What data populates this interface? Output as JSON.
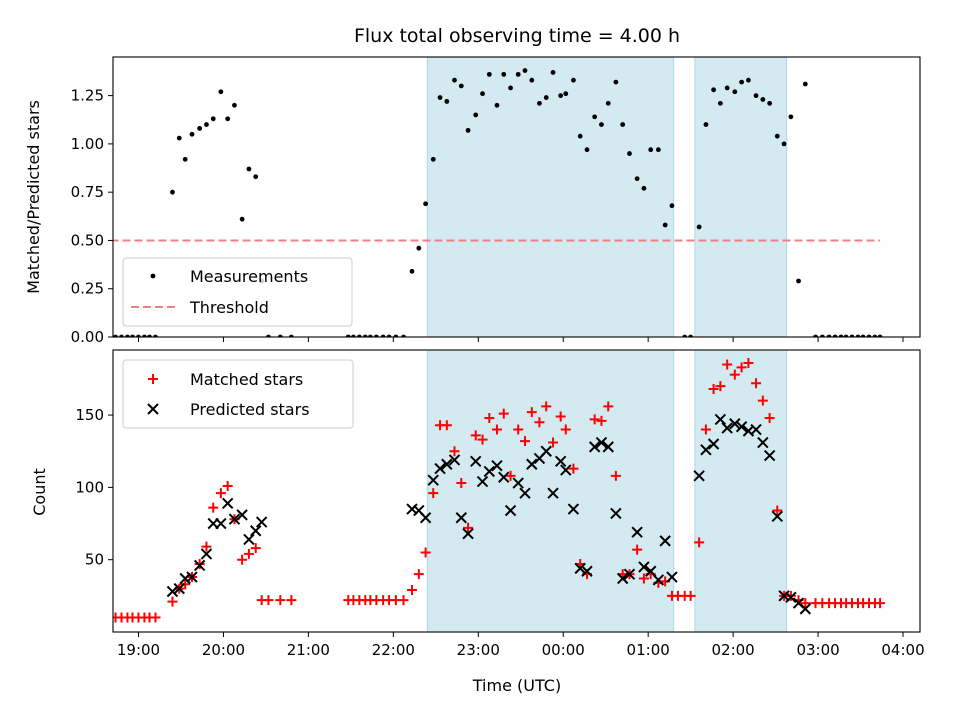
{
  "chart_data": {
    "title": "Flux total observing time = 4.00 h",
    "xlabel": "Time (UTC)",
    "x_unit": "hours since 00:00 UTC (negative = previous day)",
    "xlim": [
      -5.3,
      4.2
    ],
    "x_ticks": [
      -5,
      -4,
      -3,
      -2,
      -1,
      0,
      1,
      2,
      3,
      4
    ],
    "x_tick_labels": [
      "19:00",
      "20:00",
      "21:00",
      "22:00",
      "23:00",
      "00:00",
      "01:00",
      "02:00",
      "03:00",
      "04:00"
    ],
    "shaded_intervals": [
      [
        -1.6,
        1.3
      ],
      [
        1.55,
        2.63
      ]
    ],
    "shade_color": "#d3eaf1",
    "top": {
      "type": "scatter",
      "ylabel": "Matched/Predicted stars",
      "ylim": [
        0,
        1.45
      ],
      "y_ticks": [
        0,
        0.25,
        0.5,
        0.75,
        1.0,
        1.25
      ],
      "y_tick_labels": [
        "0.00",
        "0.25",
        "0.50",
        "0.75",
        "1.00",
        "1.25"
      ],
      "legend": [
        "Measurements",
        "Threshold"
      ],
      "threshold": {
        "name": "Threshold",
        "y": 0.5,
        "x_range": [
          -5.33,
          3.73
        ],
        "color": "#f08080"
      },
      "series": {
        "name": "Measurements",
        "color": "#000000",
        "points": [
          [
            -5.33,
            0
          ],
          [
            -5.27,
            0
          ],
          [
            -5.2,
            0
          ],
          [
            -5.13,
            0
          ],
          [
            -5.07,
            0
          ],
          [
            -5.0,
            0
          ],
          [
            -4.93,
            0
          ],
          [
            -4.87,
            0
          ],
          [
            -4.8,
            0
          ],
          [
            -4.6,
            0.75
          ],
          [
            -4.52,
            1.03
          ],
          [
            -4.45,
            0.92
          ],
          [
            -4.37,
            1.05
          ],
          [
            -4.28,
            1.08
          ],
          [
            -4.2,
            1.1
          ],
          [
            -4.12,
            1.13
          ],
          [
            -4.03,
            1.27
          ],
          [
            -3.95,
            1.13
          ],
          [
            -3.87,
            1.2
          ],
          [
            -3.78,
            0.61
          ],
          [
            -3.7,
            0.87
          ],
          [
            -3.62,
            0.83
          ],
          [
            -3.55,
            0.29
          ],
          [
            -3.47,
            0
          ],
          [
            -3.33,
            0
          ],
          [
            -3.2,
            0
          ],
          [
            -2.53,
            0
          ],
          [
            -2.47,
            0
          ],
          [
            -2.4,
            0
          ],
          [
            -2.33,
            0
          ],
          [
            -2.27,
            0
          ],
          [
            -2.2,
            0
          ],
          [
            -2.12,
            0
          ],
          [
            -2.05,
            0
          ],
          [
            -1.97,
            0
          ],
          [
            -1.88,
            0
          ],
          [
            -1.78,
            0.34
          ],
          [
            -1.7,
            0.46
          ],
          [
            -1.62,
            0.69
          ],
          [
            -1.53,
            0.92
          ],
          [
            -1.45,
            1.24
          ],
          [
            -1.37,
            1.22
          ],
          [
            -1.28,
            1.33
          ],
          [
            -1.2,
            1.3
          ],
          [
            -1.12,
            1.07
          ],
          [
            -1.03,
            1.15
          ],
          [
            -0.95,
            1.26
          ],
          [
            -0.87,
            1.36
          ],
          [
            -0.78,
            1.2
          ],
          [
            -0.7,
            1.36
          ],
          [
            -0.62,
            1.29
          ],
          [
            -0.53,
            1.36
          ],
          [
            -0.45,
            1.38
          ],
          [
            -0.37,
            1.33
          ],
          [
            -0.28,
            1.21
          ],
          [
            -0.2,
            1.24
          ],
          [
            -0.12,
            1.37
          ],
          [
            -0.03,
            1.25
          ],
          [
            0.03,
            1.26
          ],
          [
            0.12,
            1.33
          ],
          [
            0.2,
            1.04
          ],
          [
            0.28,
            0.97
          ],
          [
            0.37,
            1.14
          ],
          [
            0.45,
            1.1
          ],
          [
            0.53,
            1.21
          ],
          [
            0.62,
            1.32
          ],
          [
            0.7,
            1.1
          ],
          [
            0.78,
            0.95
          ],
          [
            0.87,
            0.82
          ],
          [
            0.95,
            0.77
          ],
          [
            1.03,
            0.97
          ],
          [
            1.12,
            0.97
          ],
          [
            1.2,
            0.58
          ],
          [
            1.28,
            0.68
          ],
          [
            1.43,
            0
          ],
          [
            1.5,
            0
          ],
          [
            1.6,
            0.57
          ],
          [
            1.68,
            1.1
          ],
          [
            1.77,
            1.28
          ],
          [
            1.85,
            1.21
          ],
          [
            1.93,
            1.29
          ],
          [
            2.02,
            1.27
          ],
          [
            2.1,
            1.32
          ],
          [
            2.18,
            1.33
          ],
          [
            2.27,
            1.25
          ],
          [
            2.35,
            1.23
          ],
          [
            2.43,
            1.21
          ],
          [
            2.52,
            1.04
          ],
          [
            2.6,
            1.0
          ],
          [
            2.68,
            1.14
          ],
          [
            2.77,
            0.29
          ],
          [
            2.85,
            1.31
          ],
          [
            2.97,
            0
          ],
          [
            3.05,
            0
          ],
          [
            3.13,
            0
          ],
          [
            3.2,
            0
          ],
          [
            3.27,
            0
          ],
          [
            3.33,
            0
          ],
          [
            3.4,
            0
          ],
          [
            3.47,
            0
          ],
          [
            3.53,
            0
          ],
          [
            3.6,
            0
          ],
          [
            3.67,
            0
          ],
          [
            3.73,
            0
          ]
        ]
      }
    },
    "bottom": {
      "type": "scatter",
      "ylabel": "Count",
      "ylim": [
        0,
        195
      ],
      "y_ticks": [
        50,
        100,
        150
      ],
      "y_tick_labels": [
        "50",
        "100",
        "150"
      ],
      "legend": [
        "Matched stars",
        "Predicted stars"
      ],
      "series": [
        {
          "name": "Matched stars",
          "marker": "plus",
          "color": "#ff0000",
          "points": [
            [
              -5.33,
              10
            ],
            [
              -5.27,
              10
            ],
            [
              -5.2,
              10
            ],
            [
              -5.13,
              10
            ],
            [
              -5.07,
              10
            ],
            [
              -5.0,
              10
            ],
            [
              -4.93,
              10
            ],
            [
              -4.87,
              10
            ],
            [
              -4.8,
              10
            ],
            [
              -4.6,
              21
            ],
            [
              -4.52,
              30
            ],
            [
              -4.45,
              33
            ],
            [
              -4.37,
              38
            ],
            [
              -4.28,
              47
            ],
            [
              -4.2,
              59
            ],
            [
              -4.12,
              86
            ],
            [
              -4.03,
              96
            ],
            [
              -3.95,
              101
            ],
            [
              -3.87,
              78
            ],
            [
              -3.78,
              50
            ],
            [
              -3.7,
              54
            ],
            [
              -3.62,
              58
            ],
            [
              -3.55,
              22
            ],
            [
              -3.47,
              22
            ],
            [
              -3.33,
              22
            ],
            [
              -3.2,
              22
            ],
            [
              -2.53,
              22
            ],
            [
              -2.47,
              22
            ],
            [
              -2.4,
              22
            ],
            [
              -2.33,
              22
            ],
            [
              -2.27,
              22
            ],
            [
              -2.2,
              22
            ],
            [
              -2.12,
              22
            ],
            [
              -2.05,
              22
            ],
            [
              -1.97,
              22
            ],
            [
              -1.88,
              22
            ],
            [
              -1.78,
              29
            ],
            [
              -1.7,
              40
            ],
            [
              -1.62,
              55
            ],
            [
              -1.53,
              96
            ],
            [
              -1.45,
              143
            ],
            [
              -1.37,
              143
            ],
            [
              -1.28,
              125
            ],
            [
              -1.2,
              103
            ],
            [
              -1.12,
              72
            ],
            [
              -1.03,
              136
            ],
            [
              -0.95,
              133
            ],
            [
              -0.87,
              148
            ],
            [
              -0.78,
              140
            ],
            [
              -0.7,
              151
            ],
            [
              -0.62,
              108
            ],
            [
              -0.53,
              140
            ],
            [
              -0.45,
              132
            ],
            [
              -0.37,
              152
            ],
            [
              -0.28,
              145
            ],
            [
              -0.2,
              156
            ],
            [
              -0.12,
              131
            ],
            [
              -0.03,
              149
            ],
            [
              0.03,
              140
            ],
            [
              0.12,
              113
            ],
            [
              0.2,
              47
            ],
            [
              0.28,
              40
            ],
            [
              0.37,
              147
            ],
            [
              0.45,
              146
            ],
            [
              0.53,
              156
            ],
            [
              0.62,
              108
            ],
            [
              0.7,
              40
            ],
            [
              0.78,
              40
            ],
            [
              0.87,
              57
            ],
            [
              0.95,
              37
            ],
            [
              1.03,
              40
            ],
            [
              1.12,
              34
            ],
            [
              1.2,
              35
            ],
            [
              1.28,
              25
            ],
            [
              1.35,
              25
            ],
            [
              1.43,
              25
            ],
            [
              1.5,
              25
            ],
            [
              1.6,
              62
            ],
            [
              1.68,
              140
            ],
            [
              1.77,
              168
            ],
            [
              1.85,
              170
            ],
            [
              1.93,
              185
            ],
            [
              2.02,
              178
            ],
            [
              2.1,
              183
            ],
            [
              2.18,
              186
            ],
            [
              2.27,
              172
            ],
            [
              2.35,
              160
            ],
            [
              2.43,
              148
            ],
            [
              2.52,
              84
            ],
            [
              2.6,
              25
            ],
            [
              2.68,
              25
            ],
            [
              2.77,
              22
            ],
            [
              2.85,
              20
            ],
            [
              2.97,
              20
            ],
            [
              3.05,
              20
            ],
            [
              3.13,
              20
            ],
            [
              3.2,
              20
            ],
            [
              3.27,
              20
            ],
            [
              3.33,
              20
            ],
            [
              3.4,
              20
            ],
            [
              3.47,
              20
            ],
            [
              3.53,
              20
            ],
            [
              3.6,
              20
            ],
            [
              3.67,
              20
            ],
            [
              3.73,
              20
            ]
          ]
        },
        {
          "name": "Predicted stars",
          "marker": "x",
          "color": "#000000",
          "points": [
            [
              -4.6,
              28
            ],
            [
              -4.52,
              30
            ],
            [
              -4.45,
              37
            ],
            [
              -4.37,
              38
            ],
            [
              -4.28,
              46
            ],
            [
              -4.2,
              54
            ],
            [
              -4.12,
              75
            ],
            [
              -4.03,
              75
            ],
            [
              -3.95,
              89
            ],
            [
              -3.87,
              78
            ],
            [
              -3.78,
              81
            ],
            [
              -3.7,
              64
            ],
            [
              -3.62,
              70
            ],
            [
              -3.55,
              76
            ],
            [
              -1.78,
              85
            ],
            [
              -1.7,
              84
            ],
            [
              -1.62,
              79
            ],
            [
              -1.53,
              105
            ],
            [
              -1.45,
              113
            ],
            [
              -1.37,
              116
            ],
            [
              -1.28,
              119
            ],
            [
              -1.2,
              79
            ],
            [
              -1.12,
              68
            ],
            [
              -1.03,
              118
            ],
            [
              -0.95,
              104
            ],
            [
              -0.87,
              111
            ],
            [
              -0.78,
              115
            ],
            [
              -0.7,
              107
            ],
            [
              -0.62,
              84
            ],
            [
              -0.53,
              103
            ],
            [
              -0.45,
              96
            ],
            [
              -0.37,
              116
            ],
            [
              -0.28,
              120
            ],
            [
              -0.2,
              125
            ],
            [
              -0.12,
              96
            ],
            [
              -0.03,
              118
            ],
            [
              0.03,
              112
            ],
            [
              0.12,
              85
            ],
            [
              0.2,
              44
            ],
            [
              0.28,
              42
            ],
            [
              0.37,
              128
            ],
            [
              0.45,
              131
            ],
            [
              0.53,
              128
            ],
            [
              0.62,
              82
            ],
            [
              0.7,
              37
            ],
            [
              0.78,
              40
            ],
            [
              0.87,
              69
            ],
            [
              0.95,
              45
            ],
            [
              1.03,
              42
            ],
            [
              1.12,
              36
            ],
            [
              1.2,
              63
            ],
            [
              1.28,
              38
            ],
            [
              1.6,
              108
            ],
            [
              1.68,
              126
            ],
            [
              1.77,
              130
            ],
            [
              1.85,
              147
            ],
            [
              1.93,
              141
            ],
            [
              2.02,
              144
            ],
            [
              2.1,
              142
            ],
            [
              2.18,
              139
            ],
            [
              2.27,
              140
            ],
            [
              2.35,
              131
            ],
            [
              2.43,
              122
            ],
            [
              2.52,
              80
            ],
            [
              2.6,
              25
            ],
            [
              2.68,
              24
            ],
            [
              2.77,
              20
            ],
            [
              2.85,
              16
            ]
          ]
        }
      ]
    }
  }
}
